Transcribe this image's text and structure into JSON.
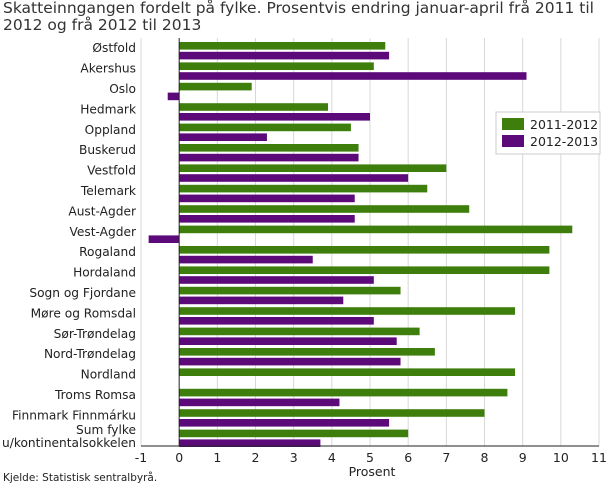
{
  "title": "Skatteinngangen fordelt på fylke. Prosentvis endring januar-april frå 2011 til 2012 og frå 2012 til 2013",
  "source": "Kjelde: Statistisk sentralbyrå.",
  "colors": {
    "series1": "#3d7e0c",
    "series2": "#5c0a7a",
    "grid": "#d8d8d8",
    "axis": "#222222"
  },
  "chart_data": {
    "type": "bar",
    "orientation": "horizontal",
    "title": "Skatteinngangen fordelt på fylke. Prosentvis endring januar-april frå 2011 til 2012 og frå 2012 til 2013",
    "xlabel": "Prosent",
    "ylabel": "",
    "xlim": [
      -1,
      11
    ],
    "xticks": [
      -1,
      0,
      1,
      2,
      3,
      4,
      5,
      6,
      7,
      8,
      9,
      10,
      11
    ],
    "grid": true,
    "legend_position": "right",
    "categories": [
      "Østfold",
      "Akershus",
      "Oslo",
      "Hedmark",
      "Oppland",
      "Buskerud",
      "Vestfold",
      "Telemark",
      "Aust-Agder",
      "Vest-Agder",
      "Rogaland",
      "Hordaland",
      "Sogn og Fjordane",
      "Møre og Romsdal",
      "Sør-Trøndelag",
      "Nord-Trøndelag",
      "Nordland",
      "Troms Romsa",
      "Finnmark Finnmárku",
      "Sum fylke\nu/kontinentalsokkelen"
    ],
    "series": [
      {
        "name": "2011-2012",
        "color": "#3d7e0c",
        "values": [
          5.4,
          5.1,
          1.9,
          3.9,
          4.5,
          4.7,
          7.0,
          6.5,
          7.6,
          10.3,
          9.7,
          9.7,
          5.8,
          8.8,
          6.3,
          6.7,
          8.8,
          8.6,
          8.0,
          6.0
        ]
      },
      {
        "name": "2012-2013",
        "color": "#5c0a7a",
        "values": [
          5.5,
          9.1,
          -0.3,
          5.0,
          2.3,
          4.7,
          6.0,
          4.6,
          4.6,
          -0.8,
          3.5,
          5.1,
          4.3,
          5.1,
          5.7,
          5.8,
          0.0,
          4.2,
          5.5,
          3.7
        ]
      }
    ]
  }
}
